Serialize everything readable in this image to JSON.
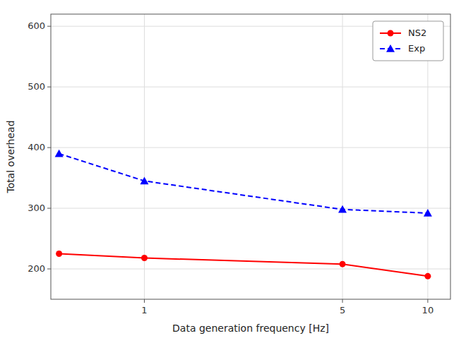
{
  "chart_data": {
    "type": "line",
    "xlabel": "Data generation frequency [Hz]",
    "ylabel": "Total overhead",
    "x": [
      0.5,
      1,
      5,
      10
    ],
    "series": [
      {
        "name": "NS2",
        "color": "#ff0000",
        "marker": "circle",
        "line_style": "solid",
        "values": [
          225,
          218,
          208,
          188
        ]
      },
      {
        "name": "Exp",
        "color": "#0000ff",
        "marker": "triangle",
        "line_style": "dashed",
        "values": [
          390,
          345,
          298,
          292
        ]
      }
    ],
    "log": "x",
    "xlim": [
      0.4677351412871981,
      12.022644346174129
    ],
    "xticks": [
      1,
      {
        "value": 5.00034535,
        "label": "5"
      },
      10
    ],
    "ylim": [
      150,
      620
    ],
    "yticks": [
      200,
      300,
      400,
      500,
      600
    ],
    "grid": true,
    "legend": "upper right"
  }
}
